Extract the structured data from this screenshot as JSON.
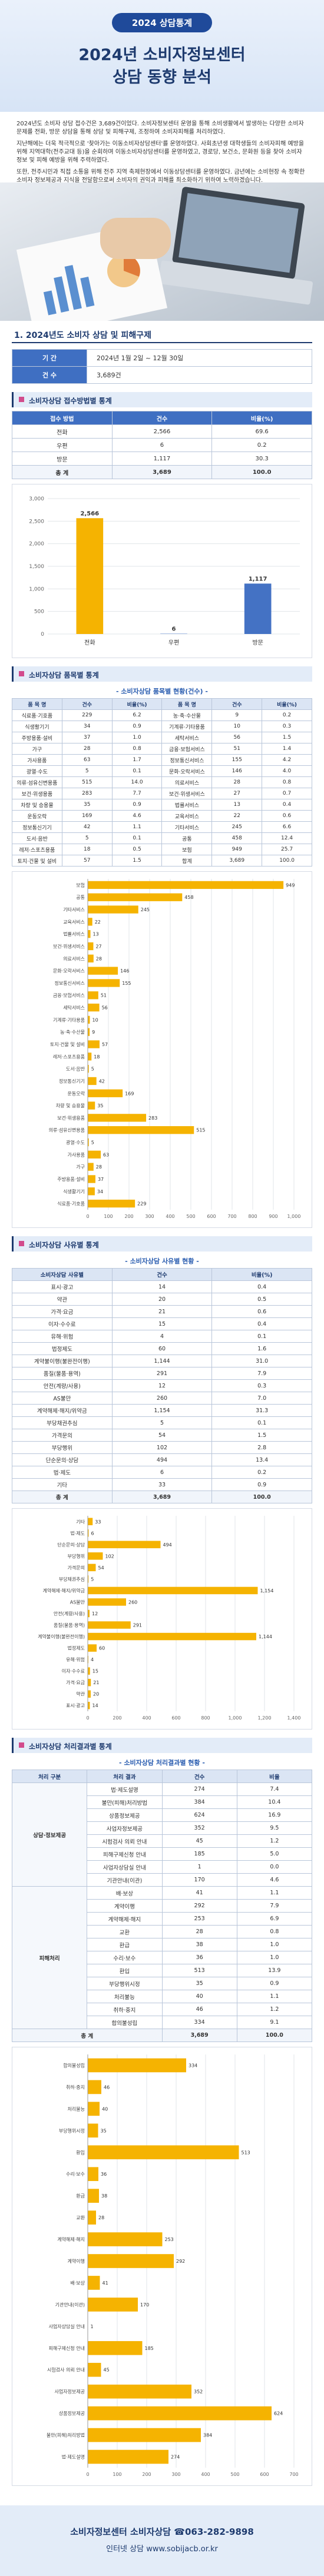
{
  "header": {
    "badge": "2024 상담통계",
    "title_line1": "2024년 소비자정보센터",
    "title_line2": "상담 동향 분석"
  },
  "intro": [
    "2024년도 소비자 상담 접수건은 3,689건이었다. 소비자정보센터 운영을 통해 소비생활에서 발생하는 다양한 소비자문제를 전화, 방문 상담을 통해 상담 및 피해구제, 조정하여 소비자피해를 처리하였다.",
    "지난해에는 더욱 적극적으로 '찾아가는 이동소비자상담센터'를 운영하였다. 사회초년생 대학생들의 소비자피해 예방을 위해 지역대학(전주교대 등)을 순회하며 이동소비자상담센터를 운영하였고, 경로당, 보건소, 문화원 등을 찾아 소비자 정보 및 피해 예방을 위해 주력하였다.",
    "또한, 전주시민과 직접 소통을 위해 전주 지역 축제현장에서 이동상담센터를 운영하였다. 금년에는 소비현장 속 정확한 소비자 정보제공과 지식을 전달함으로써 소비자의 권익과 피해를 최소화하기 위하여 노력하겠습니다."
  ],
  "period": {
    "title": "1. 2024년도 소비자 상담 및 피해구제",
    "rows": [
      [
        "기 간",
        "2024년 1월 2일 ~ 12월 30일"
      ],
      [
        "건 수",
        "3,689건"
      ]
    ]
  },
  "channel": {
    "heading": "소비자상담 접수방법별 통계",
    "table": {
      "header": [
        "접수 방법",
        "건수",
        "비율(%)"
      ],
      "rows": [
        [
          "전화",
          "2,566",
          "69.6"
        ],
        [
          "우편",
          "6",
          "0.2"
        ],
        [
          "방문",
          "1,117",
          "30.3"
        ],
        [
          "총 계",
          "3,689",
          "100.0"
        ]
      ]
    }
  },
  "items": {
    "heading": "소비자상담 품목별 통계",
    "subtitle": "- 소비자상담 품목별 현황(건수) -",
    "table": {
      "header": [
        "품 목 명",
        "건수",
        "비율(%)",
        "품 목 명",
        "건수",
        "비율(%)"
      ],
      "rows": [
        [
          "식료품·기호품",
          "229",
          "6.2",
          "농·축·수산물",
          "9",
          "0.2"
        ],
        [
          "식생활기기",
          "34",
          "0.9",
          "기계류·기타용품",
          "10",
          "0.3"
        ],
        [
          "주방용품·설비",
          "37",
          "1.0",
          "세탁서비스",
          "56",
          "1.5"
        ],
        [
          "가구",
          "28",
          "0.8",
          "금융·보험서비스",
          "51",
          "1.4"
        ],
        [
          "가사용품",
          "63",
          "1.7",
          "정보통신서비스",
          "155",
          "4.2"
        ],
        [
          "광열·수도",
          "5",
          "0.1",
          "문화·오락서비스",
          "146",
          "4.0"
        ],
        [
          "의류·섬유신변용품",
          "515",
          "14.0",
          "의료서비스",
          "28",
          "0.8"
        ],
        [
          "보건·위생용품",
          "283",
          "7.7",
          "보건·위생서비스",
          "27",
          "0.7"
        ],
        [
          "차량 및 승용물",
          "35",
          "0.9",
          "법률서비스",
          "13",
          "0.4"
        ],
        [
          "운동오락",
          "169",
          "4.6",
          "교육서비스",
          "22",
          "0.6"
        ],
        [
          "정보통신기기",
          "42",
          "1.1",
          "기타서비스",
          "245",
          "6.6"
        ],
        [
          "도서·음반",
          "5",
          "0.1",
          "공통",
          "458",
          "12.4"
        ],
        [
          "레저·스포츠용품",
          "18",
          "0.5",
          "보험",
          "949",
          "25.7"
        ],
        [
          "토지·건물 및 설비",
          "57",
          "1.5",
          "합계",
          "3,689",
          "100.0"
        ]
      ]
    }
  },
  "reasons": {
    "heading": "소비자상담 사유별 통계",
    "subtitle": "- 소비자상담 사유별 현황 -",
    "table": {
      "header": [
        "소비자상담 사유별",
        "건수",
        "비율(%)"
      ],
      "rows": [
        [
          "표시·광고",
          "14",
          "0.4"
        ],
        [
          "약관",
          "20",
          "0.5"
        ],
        [
          "가격·요금",
          "21",
          "0.6"
        ],
        [
          "이자·수수료",
          "15",
          "0.4"
        ],
        [
          "유해·위험",
          "4",
          "0.1"
        ],
        [
          "법정제도",
          "60",
          "1.6"
        ],
        [
          "계약불이행(불완전이행)",
          "1,144",
          "31.0"
        ],
        [
          "품질(물품·용역)",
          "291",
          "7.9"
        ],
        [
          "안전(계량/사용)",
          "12",
          "0.3"
        ],
        [
          "AS불만",
          "260",
          "7.0"
        ],
        [
          "계약해제·해지/위약금",
          "1,154",
          "31.3"
        ],
        [
          "부당채권추심",
          "5",
          "0.1"
        ],
        [
          "가격문의",
          "54",
          "1.5"
        ],
        [
          "부당행위",
          "102",
          "2.8"
        ],
        [
          "단순문의·상담",
          "494",
          "13.4"
        ],
        [
          "법·제도",
          "6",
          "0.2"
        ],
        [
          "기타",
          "33",
          "0.9"
        ],
        [
          "총 계",
          "3,689",
          "100.0"
        ]
      ]
    }
  },
  "results": {
    "heading": "소비자상담 처리결과별 통계",
    "subtitle": "- 소비자상담 처리결과별 현황 -",
    "table": {
      "header": [
        "처리 구분",
        "처리 결과",
        "건수",
        "비율"
      ],
      "groups": [
        {
          "name": "상담·정보제공",
          "rows": [
            [
              "법·제도설명",
              "274",
              "7.4"
            ],
            [
              "불만(피해)처리방법",
              "384",
              "10.4"
            ],
            [
              "상품정보제공",
              "624",
              "16.9"
            ],
            [
              "사업자정보제공",
              "352",
              "9.5"
            ],
            [
              "시험검사 의뢰 안내",
              "45",
              "1.2"
            ],
            [
              "피해구제신청 안내",
              "185",
              "5.0"
            ],
            [
              "사업자상담실 안내",
              "1",
              "0.0"
            ],
            [
              "기관안내(이관)",
              "170",
              "4.6"
            ]
          ]
        },
        {
          "name": "피해처리",
          "rows": [
            [
              "배·보상",
              "41",
              "1.1"
            ],
            [
              "계약이행",
              "292",
              "7.9"
            ],
            [
              "계약해제·해지",
              "253",
              "6.9"
            ],
            [
              "교환",
              "28",
              "0.8"
            ],
            [
              "환급",
              "38",
              "1.0"
            ],
            [
              "수리·보수",
              "36",
              "1.0"
            ],
            [
              "환입",
              "513",
              "13.9"
            ],
            [
              "부당행위시정",
              "35",
              "0.9"
            ],
            [
              "처리불능",
              "40",
              "1.1"
            ],
            [
              "취하·중지",
              "46",
              "1.2"
            ],
            [
              "합의불성립",
              "334",
              "9.1"
            ]
          ]
        }
      ],
      "total": [
        "총 계",
        "3,689",
        "100.0"
      ]
    }
  },
  "footer": {
    "line1": "소비자정보센터 소비자상담 ☎063-282-9898",
    "line2": "인터넷 상담 www.sobijacb.or.kr"
  },
  "chart_data": [
    {
      "type": "bar",
      "categories": [
        "전화",
        "우편",
        "방문"
      ],
      "values": [
        2566,
        6,
        1117
      ],
      "value_labels": [
        "2,566",
        "6",
        "1,117"
      ],
      "colors": [
        "#f5b301",
        "#4472c4",
        "#4472c4"
      ],
      "ylim": [
        0,
        3000
      ],
      "yticks": [
        0,
        500,
        {
          "value": 1000,
          "label": "1,000"
        },
        {
          "value": 1500,
          "label": "1,500"
        },
        {
          "value": 2000,
          "label": "2,000"
        },
        {
          "value": 2500,
          "label": "2,500"
        },
        {
          "value": 3000,
          "label": "3,000"
        }
      ],
      "grid": true
    },
    {
      "type": "hbar",
      "color": "#f5b301",
      "categories": [
        "보험",
        "공통",
        "기타서비스",
        "교육서비스",
        "법률서비스",
        "보건·위생서비스",
        "의료서비스",
        "문화·오락서비스",
        "정보통신서비스",
        "금융·보험서비스",
        "세탁서비스",
        "기계류·기타용품",
        "농·축·수산물",
        "토지·건물 및 설비",
        "레저·스포츠용품",
        "도서·음반",
        "정보통신기기",
        "운동오락",
        "차량 및 승용물",
        "보건·위생용품",
        "의류·섬유신변용품",
        "광열·수도",
        "가사용품",
        "가구",
        "주방용품·설비",
        "식생활기기",
        "식료품·기호품"
      ],
      "values": [
        949,
        458,
        245,
        22,
        13,
        27,
        28,
        146,
        155,
        51,
        56,
        10,
        9,
        57,
        18,
        5,
        42,
        169,
        35,
        283,
        515,
        5,
        63,
        28,
        37,
        34,
        229
      ],
      "xlim": [
        0,
        1000
      ],
      "xticks": [
        0,
        100,
        200,
        300,
        400,
        500,
        600,
        700,
        800,
        900,
        {
          "value": 1000,
          "label": "1,000"
        }
      ],
      "grid": true
    },
    {
      "type": "hbar",
      "color": "#f5b301",
      "categories": [
        "기타",
        "법·제도",
        "단순문의·상담",
        "부당행위",
        "가격문의",
        "부당채권추심",
        "계약해제·해지/위약금",
        "AS불만",
        "안전(계량/사용)",
        "품질(물품·용역)",
        "계약불이행(불완전이행)",
        "법정제도",
        "유해·위험",
        "이자·수수료",
        "가격·요금",
        "약관",
        "표시·광고"
      ],
      "values": [
        33,
        6,
        494,
        102,
        54,
        5,
        1154,
        260,
        12,
        291,
        1144,
        60,
        4,
        15,
        21,
        20,
        14
      ],
      "value_labels": [
        "33",
        "6",
        "494",
        "102",
        "54",
        "5",
        "1,154",
        "260",
        "12",
        "291",
        "1,144",
        "60",
        "4",
        "15",
        "21",
        "20",
        "14"
      ],
      "xlim": [
        0,
        1400
      ],
      "xticks": [
        0,
        200,
        400,
        600,
        800,
        {
          "value": 1000,
          "label": "1,000"
        },
        {
          "value": 1200,
          "label": "1,200"
        },
        {
          "value": 1400,
          "label": "1,400"
        }
      ],
      "grid": true
    },
    {
      "type": "hbar",
      "color": "#f5b301",
      "categories": [
        "합의불성립",
        "취하·중지",
        "처리불능",
        "부당행위시정",
        "환입",
        "수리·보수",
        "환급",
        "교환",
        "계약해제·해지",
        "계약이행",
        "배·보상",
        "기관안내(이관)",
        "사업자상담실 안내",
        "피해구제신청 안내",
        "시험검사 의뢰 안내",
        "사업자정보제공",
        "상품정보제공",
        "불만(피해)처리방법",
        "법·제도설명"
      ],
      "values": [
        334,
        46,
        40,
        35,
        513,
        36,
        38,
        28,
        253,
        292,
        41,
        170,
        1,
        185,
        45,
        352,
        624,
        384,
        274
      ],
      "xlim": [
        0,
        700
      ],
      "xticks": [
        0,
        100,
        200,
        300,
        400,
        500,
        600,
        700
      ],
      "grid": true
    }
  ]
}
